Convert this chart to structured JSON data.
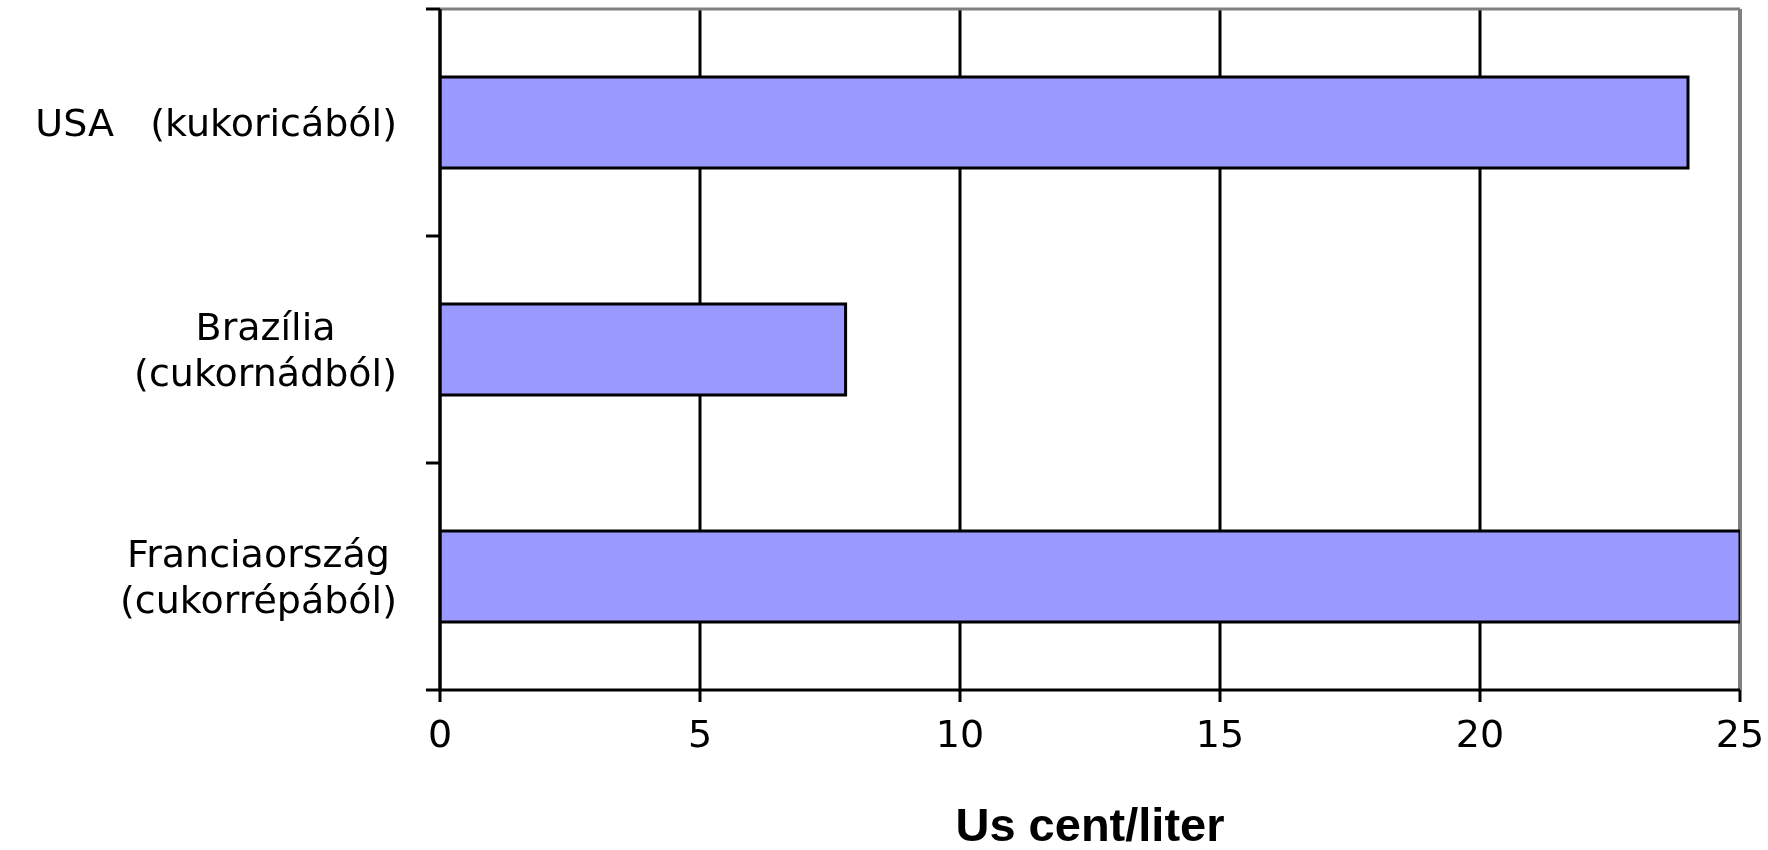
{
  "chart_data": {
    "type": "bar",
    "orientation": "horizontal",
    "categories": [
      "USA   (kukoricából)",
      "Brazília\n(cukornádból)",
      "Franciaország\n(cukorrépából)"
    ],
    "values": [
      24,
      7.8,
      25
    ],
    "color": "#9999ff",
    "xlabel": "Us cent/liter",
    "xlim": [
      0,
      25
    ],
    "xticks": [
      0,
      5,
      10,
      15,
      20,
      25
    ],
    "grid": "x"
  }
}
